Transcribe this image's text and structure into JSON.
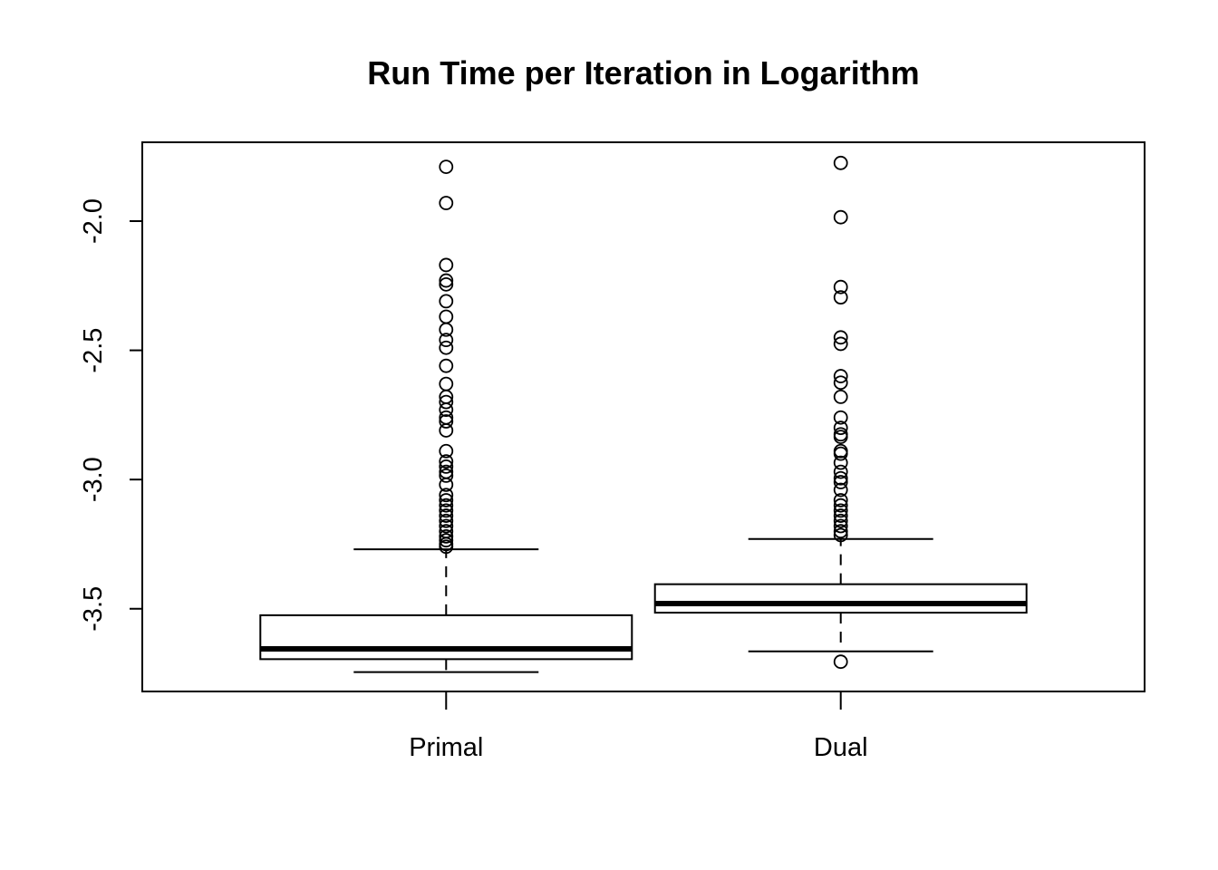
{
  "chart_data": {
    "type": "boxplot",
    "title": "Run Time per Iteration in Logarithm",
    "xlabel": "",
    "ylabel": "",
    "ylim": [
      -3.82,
      -1.695
    ],
    "y_ticks": [
      -3.5,
      -3.0,
      -2.5,
      -2.0
    ],
    "y_tick_labels": [
      "-3.5",
      "-3.0",
      "-2.5",
      "-2.0"
    ],
    "categories": [
      "Primal",
      "Dual"
    ],
    "boxes": [
      {
        "name": "Primal",
        "whisker_low": -3.745,
        "q1": -3.695,
        "median": -3.655,
        "q3": -3.525,
        "whisker_high": -3.27,
        "outliers": [
          -1.79,
          -1.93,
          -2.17,
          -2.23,
          -2.245,
          -2.31,
          -2.37,
          -2.42,
          -2.46,
          -2.49,
          -2.56,
          -2.63,
          -2.68,
          -2.7,
          -2.73,
          -2.76,
          -2.775,
          -2.81,
          -2.89,
          -2.93,
          -2.95,
          -2.97,
          -2.985,
          -3.02,
          -3.06,
          -3.08,
          -3.1,
          -3.12,
          -3.14,
          -3.16,
          -3.18,
          -3.2,
          -3.22,
          -3.235,
          -3.25,
          -3.26
        ]
      },
      {
        "name": "Dual",
        "whisker_low": -3.665,
        "q1": -3.515,
        "median": -3.48,
        "q3": -3.405,
        "whisker_high": -3.23,
        "outliers": [
          -1.775,
          -1.985,
          -2.255,
          -2.295,
          -2.45,
          -2.475,
          -2.6,
          -2.625,
          -2.68,
          -2.76,
          -2.8,
          -2.825,
          -2.835,
          -2.89,
          -2.9,
          -2.935,
          -2.97,
          -2.995,
          -3.01,
          -3.04,
          -3.08,
          -3.1,
          -3.12,
          -3.14,
          -3.16,
          -3.18,
          -3.2,
          -3.215,
          -3.705
        ]
      }
    ],
    "grid": false,
    "legend": "none"
  }
}
